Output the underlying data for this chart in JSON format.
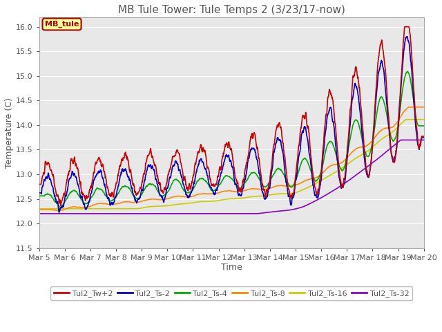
{
  "title": "MB Tule Tower: Tule Temps 2 (3/23/17-now)",
  "xlabel": "Time",
  "ylabel": "Temperature (C)",
  "ylim": [
    11.5,
    16.2
  ],
  "xlim": [
    0,
    15
  ],
  "x_tick_labels": [
    "Mar 5",
    "Mar 6",
    "Mar 7",
    "Mar 8",
    "Mar 9",
    "Mar 10",
    "Mar 11",
    "Mar 12",
    "Mar 13",
    "Mar 14",
    "Mar 15",
    "Mar 16",
    "Mar 17",
    "Mar 18",
    "Mar 19",
    "Mar 20"
  ],
  "background_color": "#ffffff",
  "plot_background": "#e8e8e8",
  "legend_label": "MB_tule",
  "legend_bg": "#ffff99",
  "legend_border": "#aa0000",
  "series": {
    "Tul2_Tw+2": {
      "color": "#cc0000",
      "lw": 1.2
    },
    "Tul2_Ts-2": {
      "color": "#0000cc",
      "lw": 1.2
    },
    "Tul2_Ts-4": {
      "color": "#00aa00",
      "lw": 1.2
    },
    "Tul2_Ts-8": {
      "color": "#ff8800",
      "lw": 1.2
    },
    "Tul2_Ts-16": {
      "color": "#cccc00",
      "lw": 1.2
    },
    "Tul2_Ts-32": {
      "color": "#8800cc",
      "lw": 1.2
    }
  },
  "title_fontsize": 11,
  "axis_fontsize": 9,
  "tick_fontsize": 8
}
